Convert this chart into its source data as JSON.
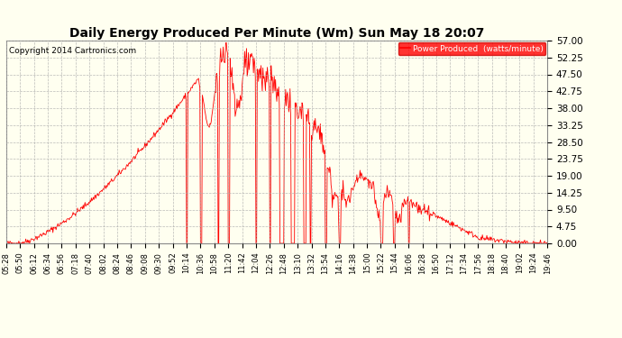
{
  "title": "Daily Energy Produced Per Minute (Wm) Sun May 18 20:07",
  "copyright": "Copyright 2014 Cartronics.com",
  "legend_label": "Power Produced  (watts/minute)",
  "legend_bg": "#FF0000",
  "legend_text_color": "#FFFFFF",
  "bg_color": "#FFFFF0",
  "plot_bg_color": "#FFFFF0",
  "line_color": "#FF0000",
  "grid_color": "#AAAAAA",
  "title_color": "#000000",
  "ymin": 0.0,
  "ymax": 57.0,
  "yticks": [
    0.0,
    4.75,
    9.5,
    14.25,
    19.0,
    23.75,
    28.5,
    33.25,
    38.0,
    42.75,
    47.5,
    52.25,
    57.0
  ],
  "xstart_minutes": 328,
  "xend_minutes": 1186,
  "xtick_interval": 22,
  "time_labels": [
    "05:28",
    "05:50",
    "06:12",
    "06:34",
    "06:56",
    "07:18",
    "07:40",
    "08:02",
    "08:24",
    "08:46",
    "09:08",
    "09:30",
    "09:52",
    "10:14",
    "10:36",
    "10:58",
    "11:20",
    "11:42",
    "12:04",
    "12:26",
    "12:48",
    "13:10",
    "13:32",
    "13:54",
    "14:16",
    "14:38",
    "15:00",
    "15:22",
    "15:44",
    "16:06",
    "16:28",
    "16:50",
    "17:12",
    "17:34",
    "17:56",
    "18:18",
    "18:40",
    "19:02",
    "19:24",
    "19:46"
  ]
}
